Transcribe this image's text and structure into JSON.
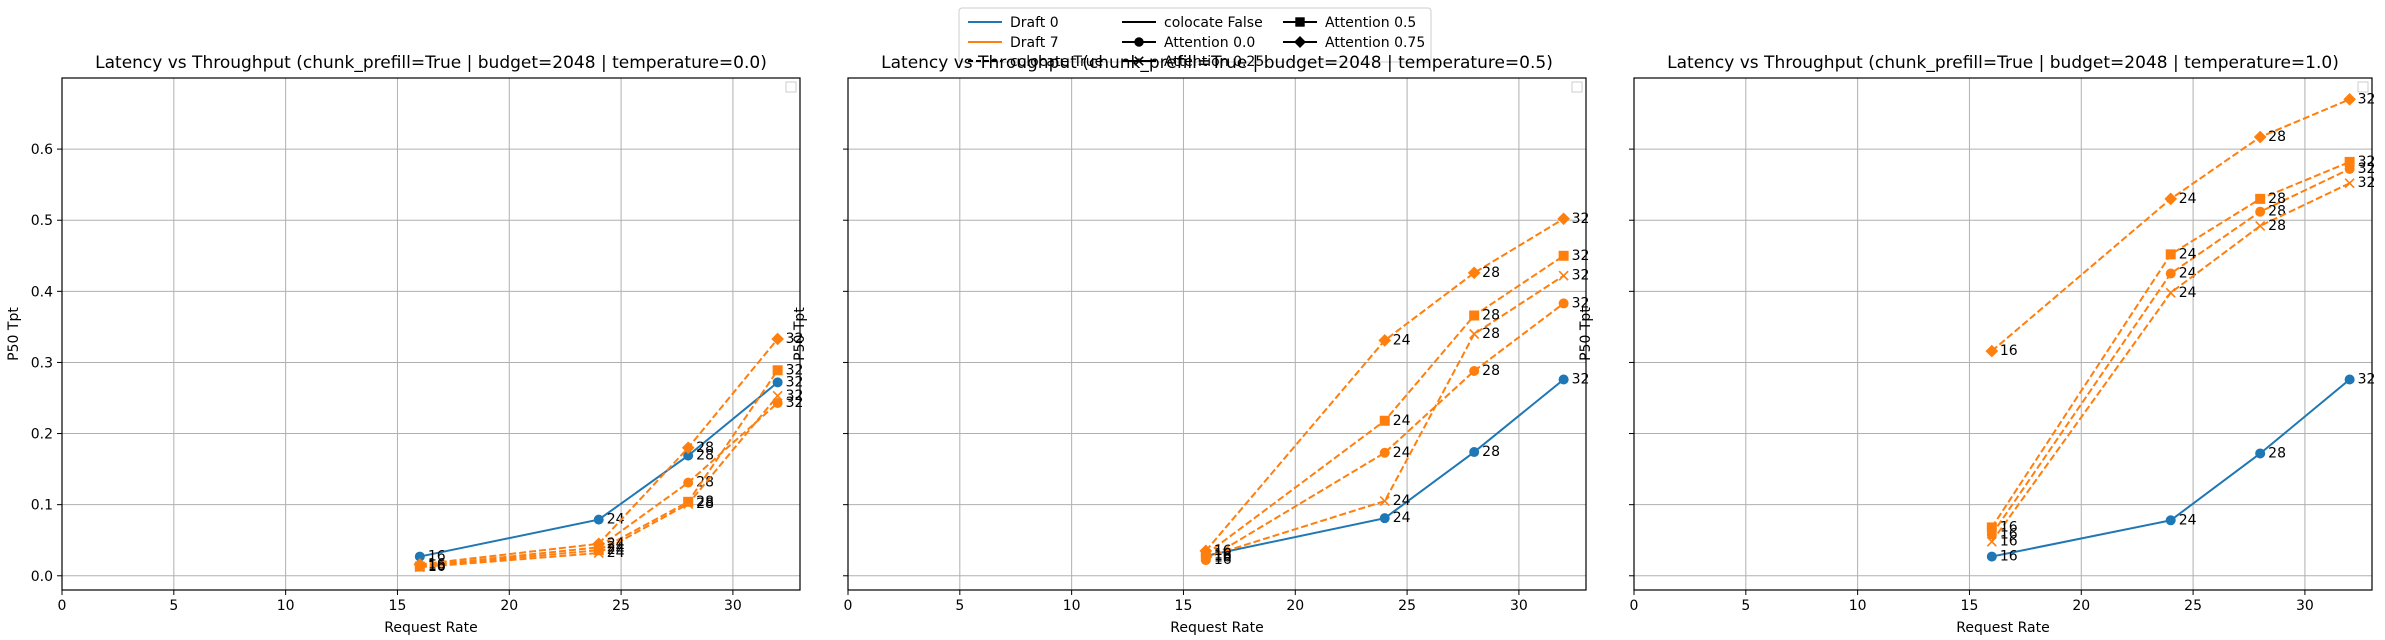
{
  "figure": {
    "legend": {
      "placement": "top-center",
      "entries": [
        {
          "label": "Draft 0",
          "kind": "color",
          "color": "#1f77b4"
        },
        {
          "label": "Draft 7",
          "kind": "color",
          "color": "#ff7f0e"
        },
        {
          "label": "colocate True",
          "kind": "dashed"
        },
        {
          "label": "colocate False",
          "kind": "solid"
        },
        {
          "label": "Attention 0.0",
          "kind": "marker",
          "marker": "circle"
        },
        {
          "label": "Attention 0.25",
          "kind": "marker",
          "marker": "x"
        },
        {
          "label": "Attention 0.5",
          "kind": "marker",
          "marker": "square"
        },
        {
          "label": "Attention 0.75",
          "kind": "marker",
          "marker": "diamond"
        }
      ]
    },
    "colors": {
      "draft0": "#1f77b4",
      "draft7": "#ff7f0e",
      "grid": "#b0b0b0"
    }
  },
  "chart_data": [
    {
      "type": "line",
      "title": "Latency vs Throughput (chunk_prefill=True | budget=2048 | temperature=0.0)",
      "xlabel": "Request Rate",
      "ylabel": "P50 Tpt",
      "xlim": [
        0,
        33
      ],
      "ylim": [
        -0.02,
        0.7
      ],
      "xticks": [
        0,
        5,
        10,
        15,
        20,
        25,
        30
      ],
      "yticks": [
        0.0,
        0.1,
        0.2,
        0.3,
        0.4,
        0.5,
        0.6
      ],
      "grid": true,
      "show_ytick_labels": true,
      "series": [
        {
          "color": "draft0",
          "dash": "solid",
          "marker": "circle",
          "x": [
            16,
            24,
            28,
            32
          ],
          "y": [
            0.027,
            0.079,
            0.169,
            0.272
          ],
          "point_labels": [
            "16",
            "24",
            "28",
            "32"
          ]
        },
        {
          "color": "draft7",
          "dash": "dashed",
          "marker": "circle",
          "x": [
            16,
            24,
            28,
            32
          ],
          "y": [
            0.014,
            0.04,
            0.131,
            0.243
          ],
          "point_labels": [
            "16",
            "24",
            "28",
            "32"
          ]
        },
        {
          "color": "draft7",
          "dash": "dashed",
          "marker": "x",
          "x": [
            16,
            24,
            28,
            32
          ],
          "y": [
            0.012,
            0.032,
            0.101,
            0.253
          ],
          "point_labels": [
            "16",
            "24",
            "28",
            "32"
          ]
        },
        {
          "color": "draft7",
          "dash": "dashed",
          "marker": "square",
          "x": [
            16,
            24,
            28,
            32
          ],
          "y": [
            0.013,
            0.036,
            0.104,
            0.289
          ],
          "point_labels": [
            "16",
            "24",
            "28",
            "32"
          ]
        },
        {
          "color": "draft7",
          "dash": "dashed",
          "marker": "diamond",
          "x": [
            16,
            24,
            28,
            32
          ],
          "y": [
            0.016,
            0.045,
            0.18,
            0.333
          ],
          "point_labels": [
            "16",
            "24",
            "28",
            "32"
          ]
        }
      ]
    },
    {
      "type": "line",
      "title": "Latency vs Throughput (chunk_prefill=True | budget=2048 | temperature=0.5)",
      "xlabel": "Request Rate",
      "ylabel": "P50 Tpt",
      "xlim": [
        0,
        33
      ],
      "ylim": [
        -0.02,
        0.7
      ],
      "xticks": [
        0,
        5,
        10,
        15,
        20,
        25,
        30
      ],
      "yticks": [
        0.0,
        0.1,
        0.2,
        0.3,
        0.4,
        0.5,
        0.6
      ],
      "grid": true,
      "show_ytick_labels": false,
      "series": [
        {
          "color": "draft0",
          "dash": "solid",
          "marker": "circle",
          "x": [
            16,
            24,
            28,
            32
          ],
          "y": [
            0.028,
            0.081,
            0.174,
            0.276
          ],
          "point_labels": [
            "16",
            "24",
            "28",
            "32"
          ]
        },
        {
          "color": "draft7",
          "dash": "dashed",
          "marker": "circle",
          "x": [
            16,
            24,
            28,
            32
          ],
          "y": [
            0.022,
            0.173,
            0.288,
            0.383
          ],
          "point_labels": [
            "16",
            "24",
            "28",
            "32"
          ]
        },
        {
          "color": "draft7",
          "dash": "dashed",
          "marker": "x",
          "x": [
            16,
            24,
            28,
            32
          ],
          "y": [
            0.026,
            0.105,
            0.34,
            0.422
          ],
          "point_labels": [
            "16",
            "24",
            "28",
            "32"
          ]
        },
        {
          "color": "draft7",
          "dash": "dashed",
          "marker": "square",
          "x": [
            16,
            24,
            28,
            32
          ],
          "y": [
            0.03,
            0.218,
            0.366,
            0.45
          ],
          "point_labels": [
            "16",
            "24",
            "28",
            "32"
          ]
        },
        {
          "color": "draft7",
          "dash": "dashed",
          "marker": "diamond",
          "x": [
            16,
            24,
            28,
            32
          ],
          "y": [
            0.035,
            0.331,
            0.426,
            0.502
          ],
          "point_labels": [
            "16",
            "24",
            "28",
            "32"
          ]
        }
      ]
    },
    {
      "type": "line",
      "title": "Latency vs Throughput (chunk_prefill=True | budget=2048 | temperature=1.0)",
      "xlabel": "Request Rate",
      "ylabel": "P50 Tpt",
      "xlim": [
        0,
        33
      ],
      "ylim": [
        -0.02,
        0.7
      ],
      "xticks": [
        0,
        5,
        10,
        15,
        20,
        25,
        30
      ],
      "yticks": [
        0.0,
        0.1,
        0.2,
        0.3,
        0.4,
        0.5,
        0.6
      ],
      "grid": true,
      "show_ytick_labels": false,
      "series": [
        {
          "color": "draft0",
          "dash": "solid",
          "marker": "circle",
          "x": [
            16,
            24,
            28,
            32
          ],
          "y": [
            0.027,
            0.078,
            0.172,
            0.276
          ],
          "point_labels": [
            "16",
            "24",
            "28",
            "32"
          ]
        },
        {
          "color": "draft7",
          "dash": "dashed",
          "marker": "circle",
          "x": [
            16,
            24,
            28,
            32
          ],
          "y": [
            0.058,
            0.425,
            0.512,
            0.572
          ],
          "point_labels": [
            "16",
            "24",
            "28",
            "32"
          ]
        },
        {
          "color": "draft7",
          "dash": "dashed",
          "marker": "x",
          "x": [
            16,
            24,
            28,
            32
          ],
          "y": [
            0.048,
            0.398,
            0.492,
            0.552
          ],
          "point_labels": [
            "16",
            "24",
            "28",
            "32"
          ]
        },
        {
          "color": "draft7",
          "dash": "dashed",
          "marker": "square",
          "x": [
            16,
            24,
            28,
            32
          ],
          "y": [
            0.068,
            0.452,
            0.53,
            0.582
          ],
          "point_labels": [
            "16",
            "24",
            "28",
            "32"
          ]
        },
        {
          "color": "draft7",
          "dash": "dashed",
          "marker": "diamond",
          "x": [
            16,
            24,
            28,
            32
          ],
          "y": [
            0.316,
            0.53,
            0.617,
            0.67
          ],
          "point_labels": [
            "16",
            "24",
            "28",
            "32"
          ]
        }
      ]
    }
  ]
}
